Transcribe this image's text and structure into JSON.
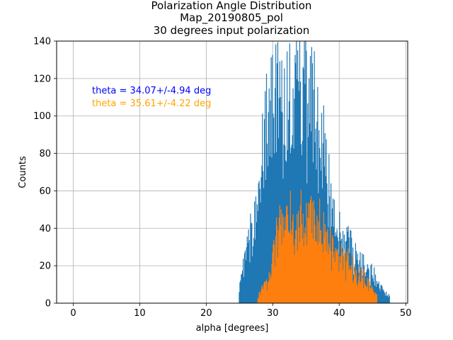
{
  "chart_data": {
    "type": "histogram",
    "title": [
      "Polarization Angle Distribution",
      "Map_20190805_pol",
      "30 degrees input polarization"
    ],
    "xlabel": "alpha [degrees]",
    "ylabel": "Counts",
    "xlim": [
      -2.5,
      50.3
    ],
    "ylim": [
      0,
      140
    ],
    "xticks": [
      0,
      10,
      20,
      30,
      40,
      50
    ],
    "yticks": [
      0,
      20,
      40,
      60,
      80,
      100,
      120,
      140
    ],
    "grid": true,
    "bin_width_deg": 0.1,
    "annotations": [
      {
        "text": "theta = 34.07+/-4.94 deg",
        "color": "#0000ff"
      },
      {
        "text": "theta = 35.61+/-4.22 deg",
        "color": "#ffa500"
      }
    ],
    "series": [
      {
        "color": "#1f77b4",
        "range": [
          24.9,
          47.6
        ],
        "envelope": {
          "x": [
            24.9,
            25.5,
            26.5,
            27.5,
            28.0,
            28.5,
            29.0,
            29.5,
            30.0,
            30.5,
            31.0,
            32.0,
            33.0,
            34.0,
            35.0,
            35.5,
            36.0,
            37.0,
            38.0,
            39.0,
            40.0,
            41.0,
            42.0,
            43.0,
            44.0,
            45.0,
            46.0,
            47.0,
            47.6
          ],
          "y": [
            5,
            20,
            35,
            48,
            60,
            80,
            95,
            100,
            108,
            104,
            100,
            98,
            100,
            108,
            118,
            112,
            105,
            90,
            72,
            50,
            40,
            34,
            28,
            24,
            20,
            15,
            10,
            6,
            3
          ]
        }
      },
      {
        "color": "#ff7f0e",
        "range": [
          27.7,
          45.7
        ],
        "envelope": {
          "x": [
            27.7,
            28.5,
            29.5,
            30.0,
            31.0,
            32.0,
            33.0,
            34.0,
            35.0,
            36.0,
            37.0,
            38.0,
            39.0,
            40.0,
            41.0,
            42.0,
            43.0,
            44.0,
            45.0,
            45.7
          ],
          "y": [
            3,
            8,
            12,
            26,
            40,
            42,
            40,
            42,
            45,
            46,
            38,
            32,
            28,
            25,
            22,
            18,
            15,
            12,
            8,
            3
          ]
        }
      }
    ]
  }
}
